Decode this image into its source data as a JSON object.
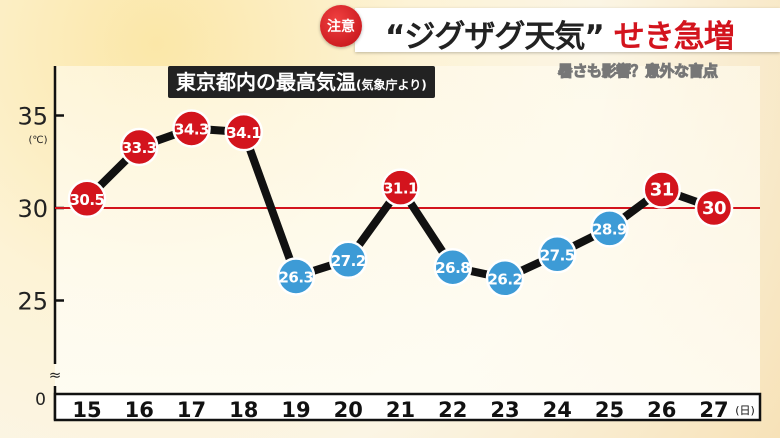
{
  "header": {
    "badge": "注意",
    "title_main": "“ジグザグ天気”",
    "title_accent": "せき急増",
    "subtitle": "暑さも影響？意外な盲点"
  },
  "chart_data": {
    "type": "line",
    "title": "東京都内の最高気温",
    "title_note": "(気象庁より)",
    "ylabel": "(℃)",
    "xlabel": "(日)",
    "categories": [
      "15",
      "16",
      "17",
      "18",
      "19",
      "20",
      "21",
      "22",
      "23",
      "24",
      "25",
      "26",
      "27"
    ],
    "values": [
      30.5,
      33.3,
      34.3,
      34.1,
      26.3,
      27.2,
      31.1,
      26.8,
      26.2,
      27.5,
      28.9,
      31,
      30
    ],
    "value_labels": [
      "30.5",
      "33.3",
      "34.3",
      "34.1",
      "26.3",
      "27.2",
      "31.1",
      "26.8",
      "26.2",
      "27.5",
      "28.9",
      "31",
      "30"
    ],
    "yticks": [
      "35",
      "30",
      "25",
      "0"
    ],
    "ylim": [
      25,
      35
    ],
    "axis_break": "≈",
    "reference_line": 30,
    "colors": {
      "above_30": "#d3141d",
      "below_30": "#3d9bd6",
      "line": "#111111",
      "reference_line": "#d3141d"
    }
  }
}
